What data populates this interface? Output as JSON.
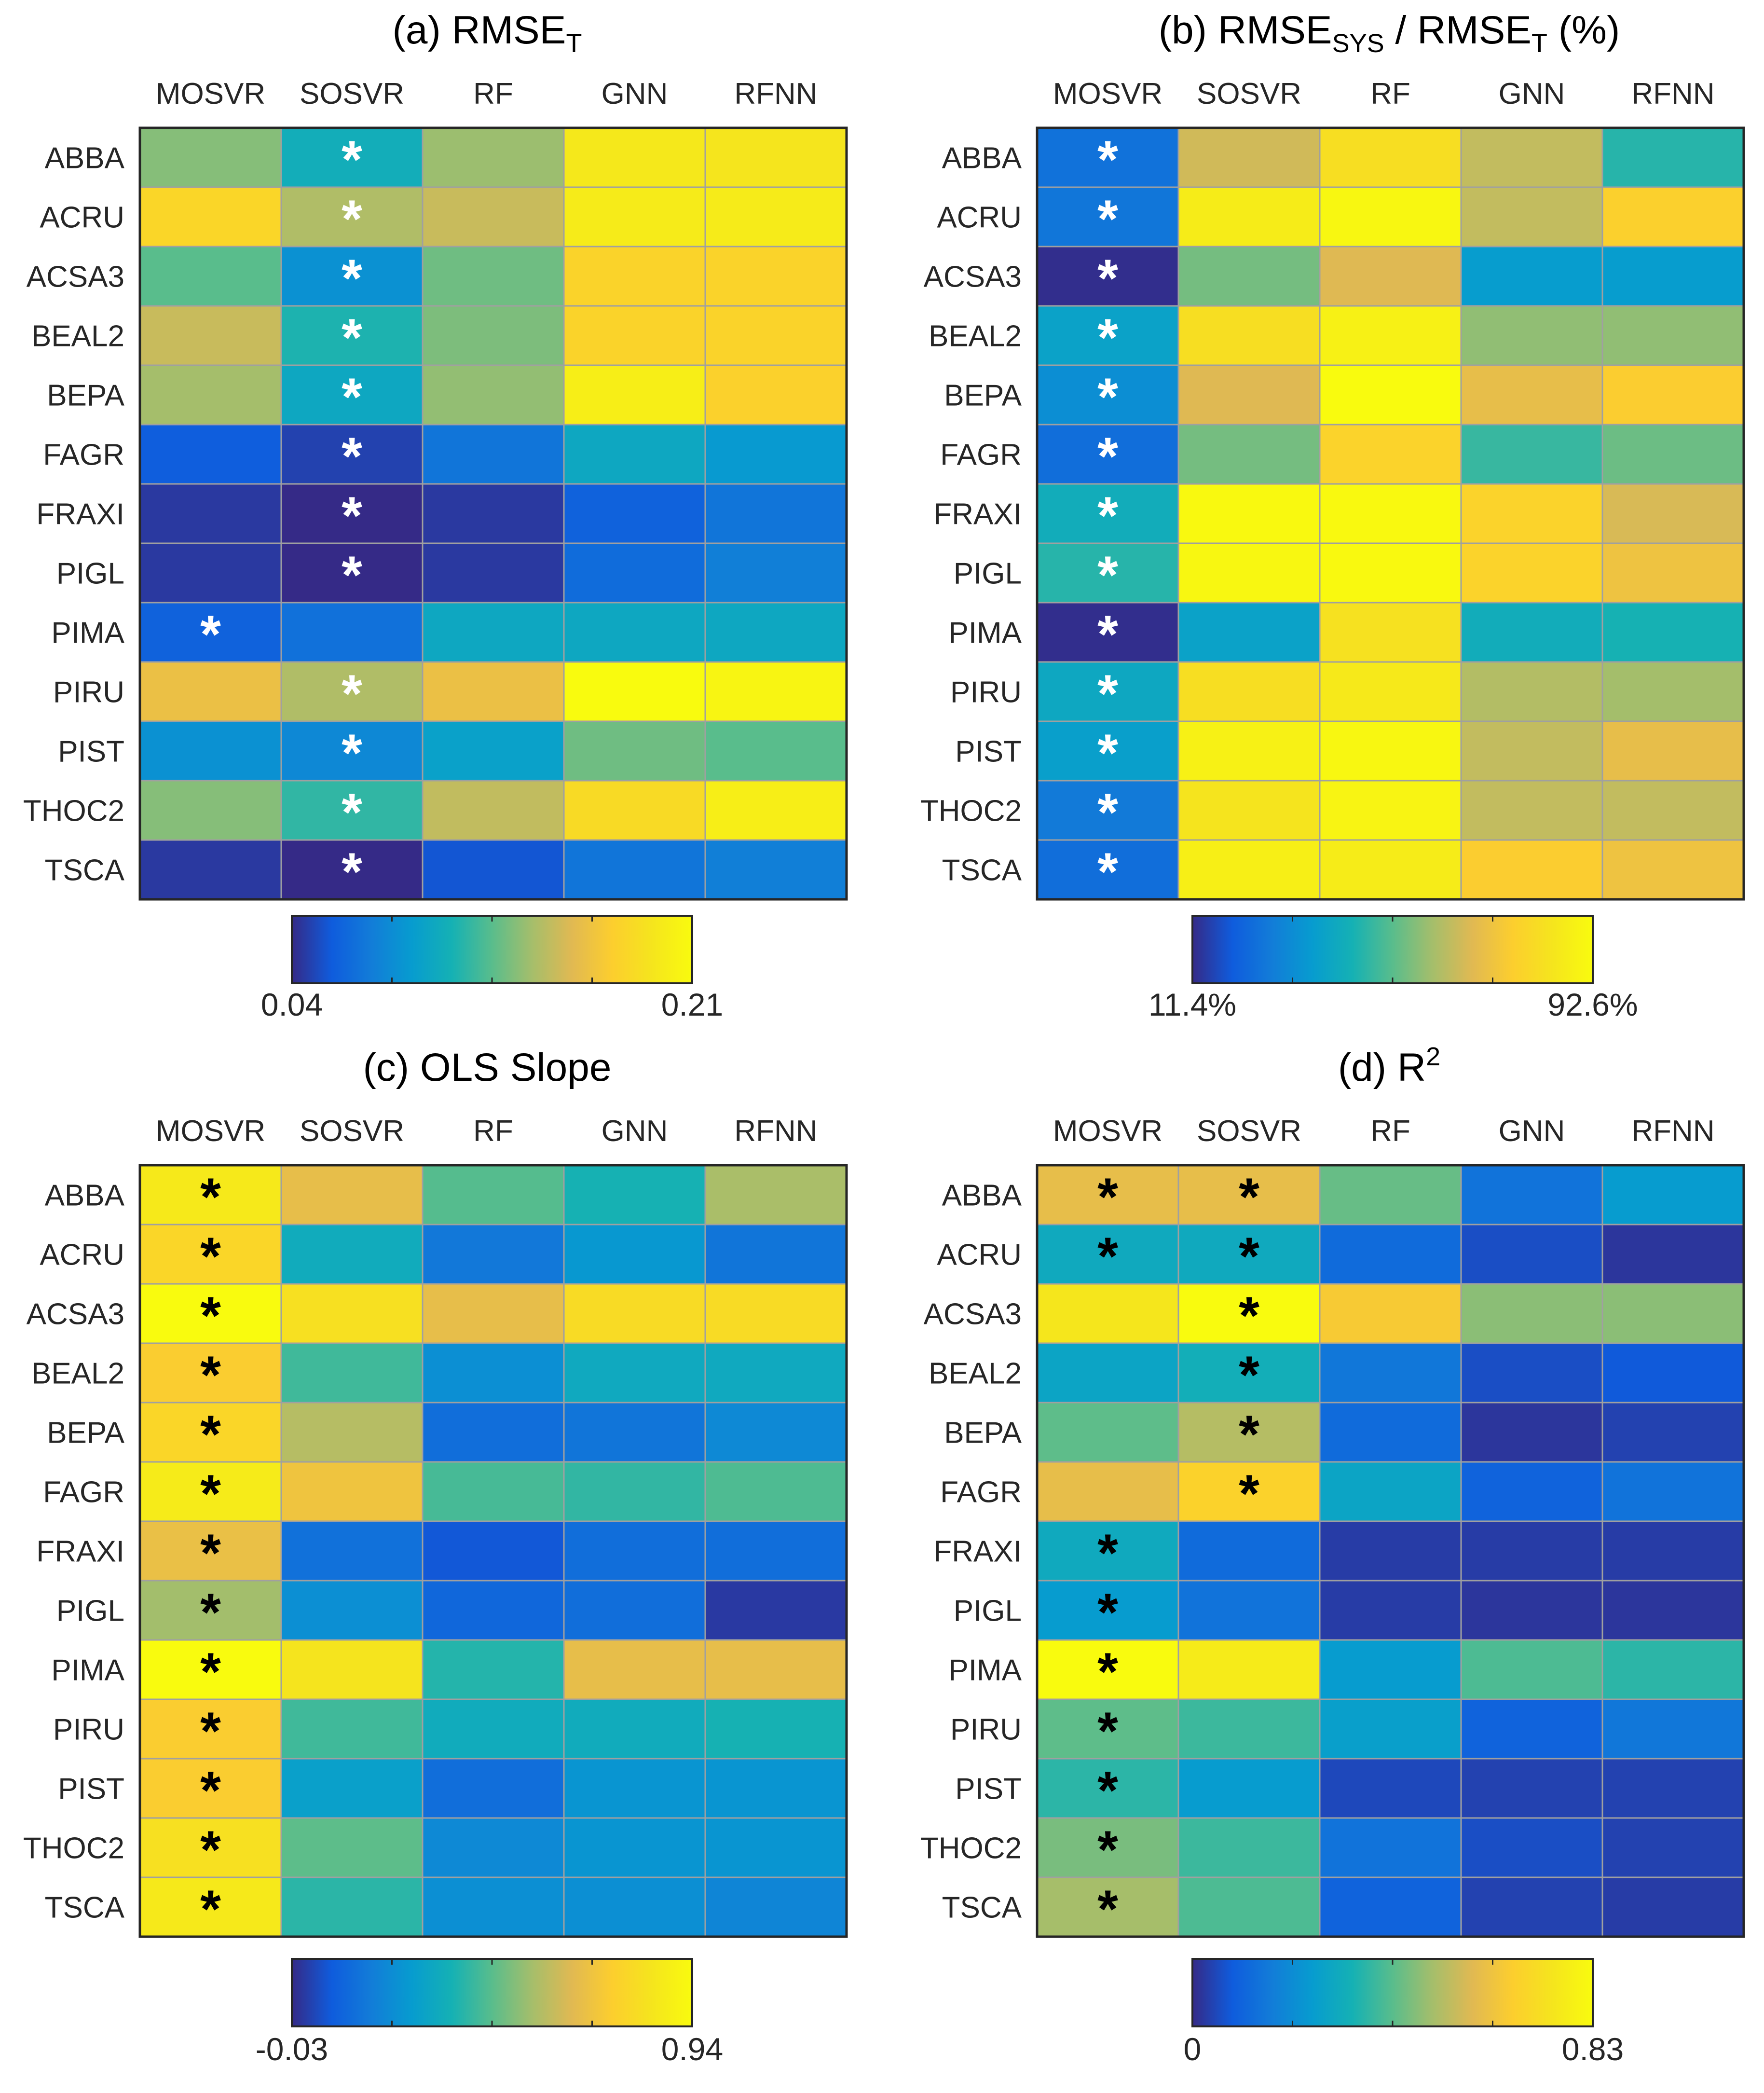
{
  "figure": {
    "rows": [
      "ABBA",
      "ACRU",
      "ACSA3",
      "BEAL2",
      "BEPA",
      "FAGR",
      "FRAXI",
      "PIGL",
      "PIMA",
      "PIRU",
      "PIST",
      "THOC2",
      "TSCA"
    ],
    "columns": [
      "MOSVR",
      "SOSVR",
      "RF",
      "GNN",
      "RFNN"
    ]
  },
  "chart_data": [
    {
      "type": "heatmap",
      "panel_label": "(a)",
      "title_main": "RMSE",
      "title_sub": "T",
      "title_rest": "",
      "colorbar_min": 0.04,
      "colorbar_max": 0.21,
      "colorbar_min_label": "0.04",
      "colorbar_max_label": "0.21",
      "star_color": "white",
      "values": [
        [
          0.135,
          0.105,
          0.14,
          0.195,
          0.193
        ],
        [
          0.182,
          0.145,
          0.152,
          0.198,
          0.198
        ],
        [
          0.125,
          0.085,
          0.13,
          0.18,
          0.18
        ],
        [
          0.152,
          0.11,
          0.133,
          0.18,
          0.18
        ],
        [
          0.142,
          0.1,
          0.138,
          0.2,
          0.178
        ],
        [
          0.058,
          0.048,
          0.07,
          0.1,
          0.09
        ],
        [
          0.045,
          0.04,
          0.045,
          0.06,
          0.07
        ],
        [
          0.045,
          0.04,
          0.045,
          0.065,
          0.075
        ],
        [
          0.06,
          0.068,
          0.1,
          0.1,
          0.1
        ],
        [
          0.165,
          0.145,
          0.165,
          0.21,
          0.205
        ],
        [
          0.085,
          0.08,
          0.095,
          0.13,
          0.125
        ],
        [
          0.135,
          0.115,
          0.15,
          0.185,
          0.2
        ],
        [
          0.045,
          0.04,
          0.055,
          0.07,
          0.075
        ]
      ],
      "stars": [
        [
          false,
          true,
          false,
          false,
          false
        ],
        [
          false,
          true,
          false,
          false,
          false
        ],
        [
          false,
          true,
          false,
          false,
          false
        ],
        [
          false,
          true,
          false,
          false,
          false
        ],
        [
          false,
          true,
          false,
          false,
          false
        ],
        [
          false,
          true,
          false,
          false,
          false
        ],
        [
          false,
          true,
          false,
          false,
          false
        ],
        [
          false,
          true,
          false,
          false,
          false
        ],
        [
          true,
          false,
          false,
          false,
          false
        ],
        [
          false,
          true,
          false,
          false,
          false
        ],
        [
          false,
          true,
          false,
          false,
          false
        ],
        [
          false,
          true,
          false,
          false,
          false
        ],
        [
          false,
          true,
          false,
          false,
          false
        ]
      ]
    },
    {
      "type": "heatmap",
      "panel_label": "(b)",
      "title_main": "RMSE",
      "title_sub": "SYS",
      "title_rest": " / RMSE",
      "title_sub2": "T",
      "title_tail": " (%)",
      "colorbar_min": 11.4,
      "colorbar_max": 92.6,
      "colorbar_min_label": "11.4%",
      "colorbar_max_label": "92.6%",
      "star_color": "white",
      "values": [
        [
          25,
          66,
          82,
          64,
          46
        ],
        [
          26,
          87,
          91,
          64,
          77
        ],
        [
          12,
          55,
          68,
          36,
          36
        ],
        [
          38,
          82,
          89,
          58,
          58
        ],
        [
          32,
          68,
          93,
          70,
          76
        ],
        [
          24,
          55,
          78,
          48,
          54
        ],
        [
          42,
          92,
          92,
          78,
          67
        ],
        [
          46,
          91,
          92,
          78,
          72
        ],
        [
          12,
          38,
          83,
          42,
          44
        ],
        [
          40,
          82,
          86,
          62,
          60
        ],
        [
          37,
          89,
          91,
          64,
          70
        ],
        [
          27,
          84,
          90,
          64,
          64
        ],
        [
          24,
          88,
          87,
          76,
          72
        ]
      ],
      "stars": [
        [
          true,
          false,
          false,
          false,
          false
        ],
        [
          true,
          false,
          false,
          false,
          false
        ],
        [
          true,
          false,
          false,
          false,
          false
        ],
        [
          true,
          false,
          false,
          false,
          false
        ],
        [
          true,
          false,
          false,
          false,
          false
        ],
        [
          true,
          false,
          false,
          false,
          false
        ],
        [
          true,
          false,
          false,
          false,
          false
        ],
        [
          true,
          false,
          false,
          false,
          false
        ],
        [
          true,
          false,
          false,
          false,
          false
        ],
        [
          true,
          false,
          false,
          false,
          false
        ],
        [
          true,
          false,
          false,
          false,
          false
        ],
        [
          true,
          false,
          false,
          false,
          false
        ],
        [
          true,
          false,
          false,
          false,
          false
        ]
      ]
    },
    {
      "type": "heatmap",
      "panel_label": "(c)",
      "title_main": "OLS Slope",
      "title_sub": "",
      "title_rest": "",
      "colorbar_min": -0.03,
      "colorbar_max": 0.94,
      "colorbar_min_label": "-0.03",
      "colorbar_max_label": "0.94",
      "star_color": "black",
      "values": [
        [
          0.86,
          0.67,
          0.45,
          0.36,
          0.56
        ],
        [
          0.78,
          0.33,
          0.15,
          0.25,
          0.14
        ],
        [
          0.94,
          0.82,
          0.67,
          0.8,
          0.8
        ],
        [
          0.74,
          0.42,
          0.22,
          0.32,
          0.32
        ],
        [
          0.78,
          0.58,
          0.12,
          0.14,
          0.2
        ],
        [
          0.87,
          0.7,
          0.43,
          0.4,
          0.44
        ],
        [
          0.68,
          0.13,
          0.06,
          0.12,
          0.12
        ],
        [
          0.55,
          0.22,
          0.1,
          0.12,
          0.0
        ],
        [
          0.94,
          0.84,
          0.38,
          0.67,
          0.67
        ],
        [
          0.74,
          0.42,
          0.33,
          0.33,
          0.36
        ],
        [
          0.74,
          0.28,
          0.12,
          0.24,
          0.24
        ],
        [
          0.82,
          0.46,
          0.2,
          0.24,
          0.24
        ],
        [
          0.86,
          0.39,
          0.22,
          0.22,
          0.19
        ]
      ],
      "stars": [
        [
          true,
          false,
          false,
          false,
          false
        ],
        [
          true,
          false,
          false,
          false,
          false
        ],
        [
          true,
          false,
          false,
          false,
          false
        ],
        [
          true,
          false,
          false,
          false,
          false
        ],
        [
          true,
          false,
          false,
          false,
          false
        ],
        [
          true,
          false,
          false,
          false,
          false
        ],
        [
          true,
          false,
          false,
          false,
          false
        ],
        [
          true,
          false,
          false,
          false,
          false
        ],
        [
          true,
          false,
          false,
          false,
          false
        ],
        [
          true,
          false,
          false,
          false,
          false
        ],
        [
          true,
          false,
          false,
          false,
          false
        ],
        [
          true,
          false,
          false,
          false,
          false
        ],
        [
          true,
          false,
          false,
          false,
          false
        ]
      ]
    },
    {
      "type": "heatmap",
      "panel_label": "(d)",
      "title_main": "R",
      "title_sup": "2",
      "title_sub": "",
      "title_rest": "",
      "colorbar_min": 0,
      "colorbar_max": 0.83,
      "colorbar_min_label": "0",
      "colorbar_max_label": "0.83",
      "star_color": "black",
      "values": [
        [
          0.6,
          0.6,
          0.43,
          0.14,
          0.25
        ],
        [
          0.3,
          0.3,
          0.12,
          0.06,
          0.02
        ],
        [
          0.75,
          0.83,
          0.65,
          0.47,
          0.47
        ],
        [
          0.28,
          0.32,
          0.15,
          0.06,
          0.08
        ],
        [
          0.42,
          0.52,
          0.12,
          0.02,
          0.04
        ],
        [
          0.6,
          0.68,
          0.28,
          0.1,
          0.14
        ],
        [
          0.3,
          0.12,
          0.03,
          0.03,
          0.03
        ],
        [
          0.25,
          0.14,
          0.03,
          0.02,
          0.02
        ],
        [
          0.83,
          0.77,
          0.25,
          0.4,
          0.36
        ],
        [
          0.42,
          0.38,
          0.26,
          0.1,
          0.15
        ],
        [
          0.36,
          0.25,
          0.05,
          0.04,
          0.04
        ],
        [
          0.45,
          0.38,
          0.14,
          0.06,
          0.04
        ],
        [
          0.5,
          0.4,
          0.1,
          0.04,
          0.03
        ]
      ],
      "stars": [
        [
          true,
          true,
          false,
          false,
          false
        ],
        [
          true,
          true,
          false,
          false,
          false
        ],
        [
          false,
          true,
          false,
          false,
          false
        ],
        [
          false,
          true,
          false,
          false,
          false
        ],
        [
          false,
          true,
          false,
          false,
          false
        ],
        [
          false,
          true,
          false,
          false,
          false
        ],
        [
          true,
          false,
          false,
          false,
          false
        ],
        [
          true,
          false,
          false,
          false,
          false
        ],
        [
          true,
          false,
          false,
          false,
          false
        ],
        [
          true,
          false,
          false,
          false,
          false
        ],
        [
          true,
          false,
          false,
          false,
          false
        ],
        [
          true,
          false,
          false,
          false,
          false
        ],
        [
          true,
          false,
          false,
          false,
          false
        ]
      ]
    }
  ]
}
